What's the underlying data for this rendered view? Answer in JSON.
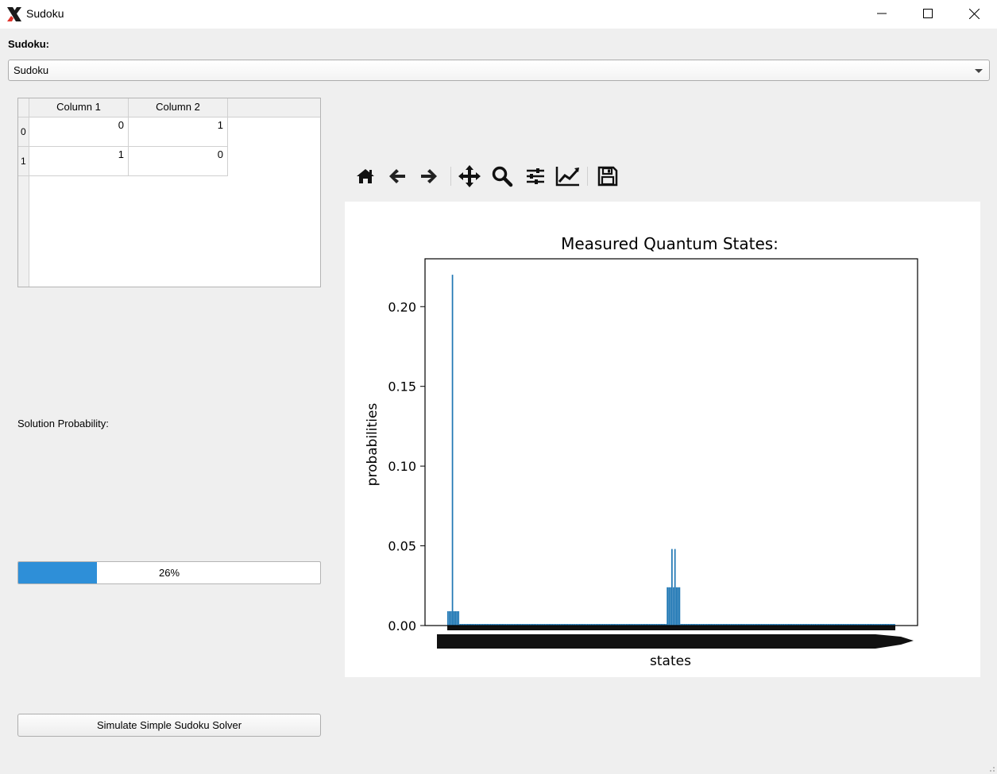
{
  "window": {
    "title": "Sudoku",
    "icons": [
      "app-logo-icon",
      "minimize-icon",
      "maximize-icon",
      "close-icon"
    ]
  },
  "sudoku_label": "Sudoku:",
  "sudoku_combo": {
    "selected": "Sudoku"
  },
  "table": {
    "columns": [
      "Column 1",
      "Column 2"
    ],
    "row_headers": [
      "0",
      "1"
    ],
    "rows": [
      [
        "0",
        "1"
      ],
      [
        "1",
        "0"
      ]
    ]
  },
  "solution_label": "Solution Probability:",
  "progress": {
    "value": 26,
    "text": "26%",
    "color": "#2e8fd8"
  },
  "simulate_button": "Simulate Simple Sudoku Solver",
  "toolbar": {
    "icons": [
      "home-icon",
      "back-icon",
      "forward-icon",
      "pan-icon",
      "zoom-icon",
      "configure-subplots-icon",
      "edit-axis-icon",
      "save-icon"
    ]
  },
  "chart_data": {
    "type": "bar",
    "title": "Measured Quantum States:",
    "xlabel": "states",
    "ylabel": "probabilities",
    "ylim": [
      0,
      0.23
    ],
    "yticks": [
      "0.00",
      "0.05",
      "0.10",
      "0.15",
      "0.20"
    ],
    "xticklabels_note": "",
    "bar_color": "#1f77b4",
    "series": [
      {
        "values": [
          0.009,
          0.009,
          0.009,
          0.22,
          0.009,
          0.009,
          0.009,
          0.009,
          0.001,
          0.001,
          0.001,
          0.001,
          0.001,
          0.001,
          0.001,
          0.001,
          0.001,
          0.001,
          0.001,
          0.001,
          0.001,
          0.001,
          0.001,
          0.001,
          0.001,
          0.001,
          0.001,
          0.001,
          0.001,
          0.001,
          0.001,
          0.001,
          0.001,
          0.001,
          0.001,
          0.001,
          0.001,
          0.001,
          0.001,
          0.001,
          0.001,
          0.001,
          0.001,
          0.001,
          0.001,
          0.001,
          0.001,
          0.001,
          0.001,
          0.001,
          0.001,
          0.001,
          0.001,
          0.001,
          0.001,
          0.001,
          0.001,
          0.001,
          0.001,
          0.001,
          0.001,
          0.001,
          0.001,
          0.001,
          0.001,
          0.001,
          0.001,
          0.001,
          0.001,
          0.001,
          0.001,
          0.001,
          0.001,
          0.001,
          0.001,
          0.001,
          0.001,
          0.001,
          0.001,
          0.001,
          0.001,
          0.001,
          0.001,
          0.001,
          0.001,
          0.001,
          0.001,
          0.001,
          0.001,
          0.001,
          0.001,
          0.001,
          0.001,
          0.001,
          0.001,
          0.001,
          0.001,
          0.001,
          0.001,
          0.001,
          0.001,
          0.001,
          0.001,
          0.001,
          0.001,
          0.001,
          0.001,
          0.001,
          0.001,
          0.001,
          0.001,
          0.001,
          0.001,
          0.001,
          0.001,
          0.001,
          0.001,
          0.001,
          0.001,
          0.001,
          0.001,
          0.001,
          0.001,
          0.001,
          0.001,
          0.001,
          0.001,
          0.001,
          0.001,
          0.001,
          0.001,
          0.001,
          0.001,
          0.001,
          0.001,
          0.001,
          0.001,
          0.001,
          0.001,
          0.001,
          0.001,
          0.001,
          0.001,
          0.001,
          0.001,
          0.024,
          0.024,
          0.024,
          0.048,
          0.024,
          0.048,
          0.024,
          0.024,
          0.024,
          0.001,
          0.001,
          0.001,
          0.001,
          0.001,
          0.001,
          0.001,
          0.001,
          0.001,
          0.001,
          0.001,
          0.001,
          0.001,
          0.001,
          0.001,
          0.001,
          0.001,
          0.001,
          0.001,
          0.001,
          0.001,
          0.001,
          0.001,
          0.001,
          0.001,
          0.001,
          0.001,
          0.001,
          0.001,
          0.001,
          0.001,
          0.001,
          0.001,
          0.001,
          0.001,
          0.001,
          0.001,
          0.001,
          0.001,
          0.001,
          0.001,
          0.001,
          0.001,
          0.001,
          0.001,
          0.001,
          0.001,
          0.001,
          0.001,
          0.001,
          0.001,
          0.001,
          0.001,
          0.001,
          0.001,
          0.001,
          0.001,
          0.001,
          0.001,
          0.001,
          0.001,
          0.001,
          0.001,
          0.001,
          0.001,
          0.001,
          0.001,
          0.001,
          0.001,
          0.001,
          0.001,
          0.001,
          0.001,
          0.001,
          0.001,
          0.001,
          0.001,
          0.001,
          0.001,
          0.001,
          0.001,
          0.001,
          0.001,
          0.001,
          0.001,
          0.001,
          0.001,
          0.001,
          0.001,
          0.001,
          0.001,
          0.001,
          0.001,
          0.001,
          0.001,
          0.001,
          0.001,
          0.001,
          0.001,
          0.001,
          0.001,
          0.001,
          0.001,
          0.001,
          0.001,
          0.001,
          0.001,
          0.001,
          0.001,
          0.001,
          0.001,
          0.001,
          0.001,
          0.001,
          0.001,
          0.001,
          0.001,
          0.001,
          0.001,
          0.001,
          0.001,
          0.001,
          0.001,
          0.001,
          0.001,
          0.001,
          0.001,
          0.001,
          0.001,
          0.001,
          0.001,
          0.001,
          0.001,
          0.001,
          0.001,
          0.001,
          0.001,
          0.001,
          0.001,
          0.001,
          0.001,
          0.001
        ]
      }
    ],
    "grid": false,
    "legend": "none"
  }
}
